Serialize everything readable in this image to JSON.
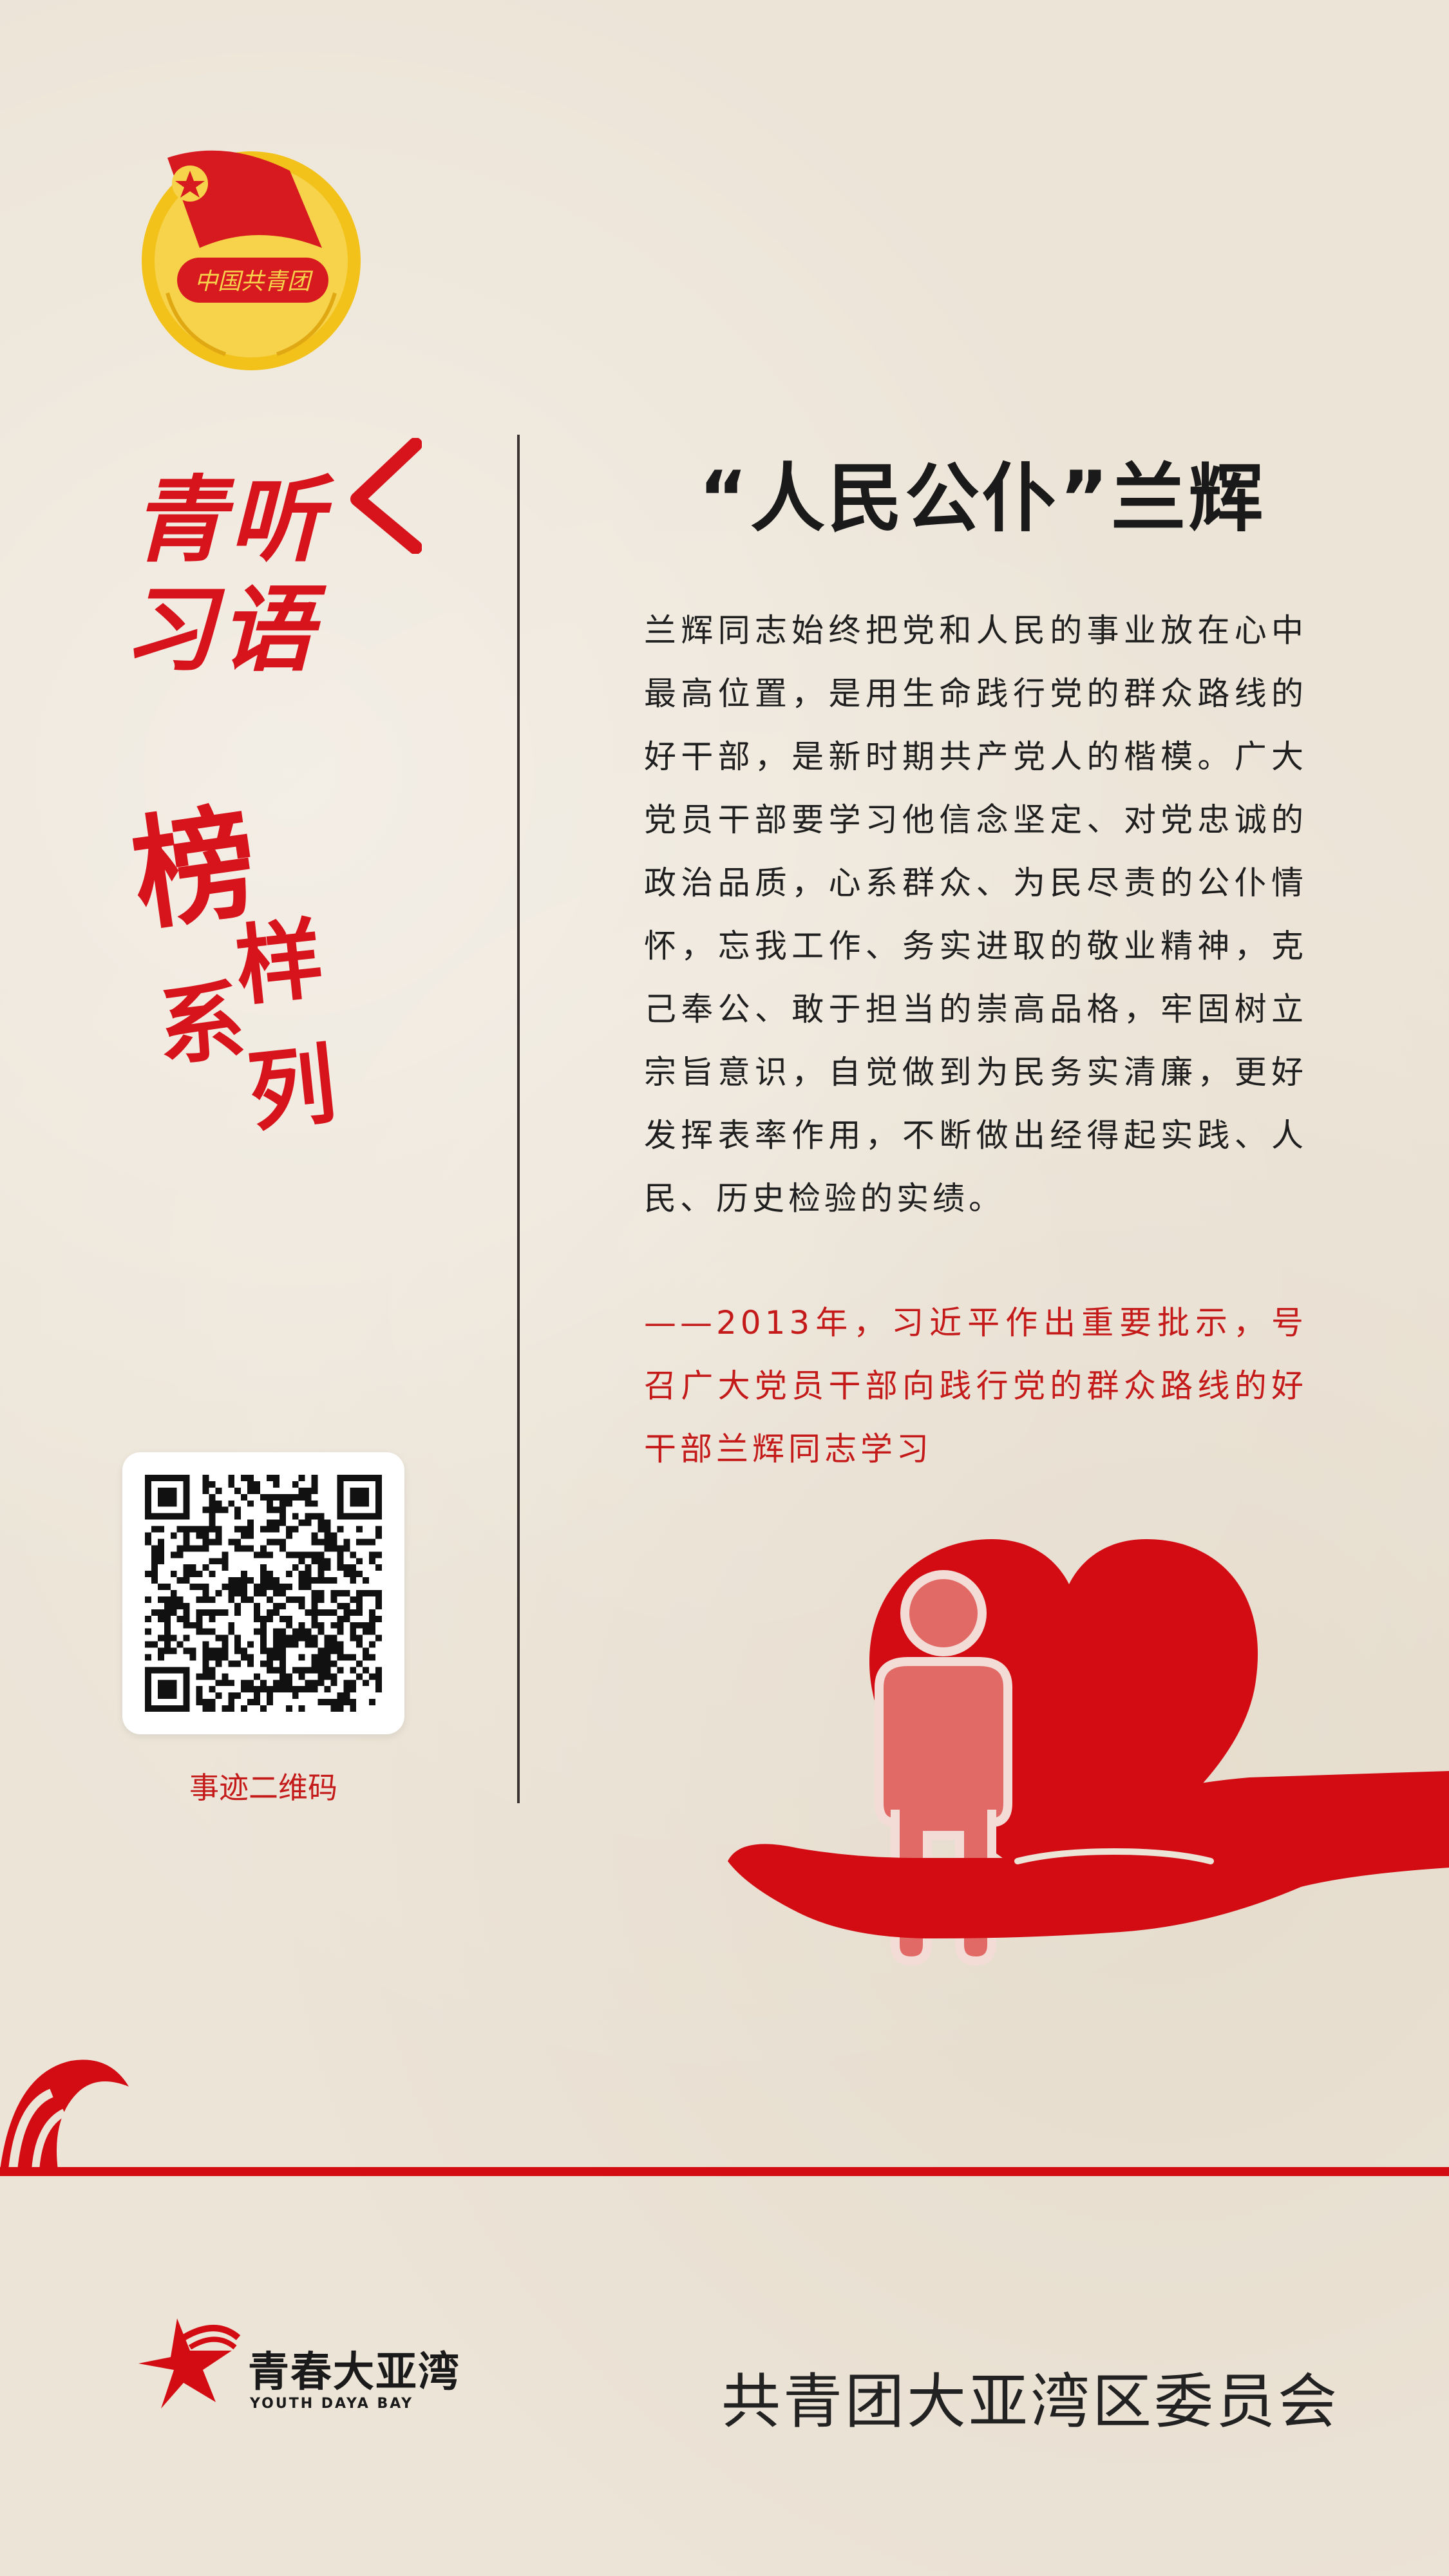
{
  "brand": {
    "emblem_text": "中国共青团",
    "line1": "青听",
    "line2": "习语"
  },
  "series": {
    "c1": "榜",
    "c2": "样",
    "c3": "系",
    "c4": "列"
  },
  "qr": {
    "caption": "事迹二维码"
  },
  "article": {
    "title": "“人民公仆”兰辉",
    "body": "兰辉同志始终把党和人民的事业放在心中最高位置，是用生命践行党的群众路线的好干部，是新时期共产党人的楷模。广大党员干部要学习他信念坚定、对党忠诚的政治品质，心系群众、为民尽责的公仆情怀，忘我工作、务实进取的敬业精神，克己奉公、敢于担当的崇高品格，牢固树立宗旨意识，自觉做到为民务实清廉，更好发挥表率作用，不断做出经得起实践、人民、历史检验的实绩。",
    "quote": "——2013年，习近平作出重要批示，号召广大党员干部向践行党的群众路线的好干部兰辉同志学习"
  },
  "footer": {
    "brand_cn": "青春大亚湾",
    "brand_en": "YOUTH DAYA BAY",
    "org": "共青团大亚湾区委员会"
  },
  "colors": {
    "accent": "#d7131c",
    "background": "#ece4d7",
    "text": "#1f1f1f"
  },
  "icons": {
    "emblem": "youth-league-emblem",
    "illustration": "hand-heart-person-icon",
    "footer_logo": "star-wave-logo"
  }
}
